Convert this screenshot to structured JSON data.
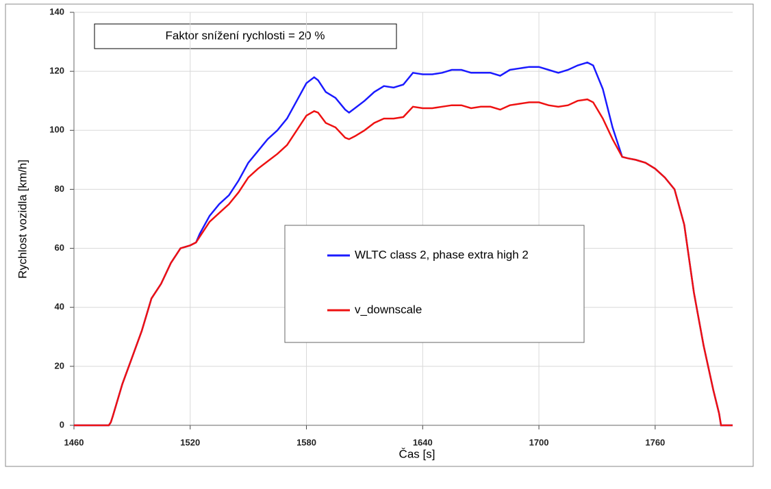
{
  "chart_data": {
    "type": "line",
    "annotation": "Faktor snížení rychlosti = 20 %",
    "x_label": "Čas [s]",
    "y_label": "Rychlost vozidla [km/h]",
    "x": [
      1460,
      1478,
      1479,
      1480,
      1485,
      1490,
      1495,
      1500,
      1505,
      1510,
      1515,
      1520,
      1523,
      1525,
      1530,
      1535,
      1540,
      1545,
      1550,
      1555,
      1560,
      1565,
      1570,
      1575,
      1580,
      1584,
      1586,
      1590,
      1595,
      1600,
      1602,
      1605,
      1610,
      1615,
      1620,
      1625,
      1630,
      1635,
      1640,
      1645,
      1650,
      1655,
      1660,
      1665,
      1670,
      1675,
      1680,
      1685,
      1690,
      1695,
      1700,
      1705,
      1710,
      1715,
      1720,
      1725,
      1728,
      1733,
      1738,
      1743,
      1746,
      1750,
      1755,
      1760,
      1765,
      1770,
      1775,
      1780,
      1785,
      1790,
      1793,
      1794,
      1800
    ],
    "series": [
      {
        "name": "WLTC class 2, phase extra high 2",
        "color": "#1a1aff",
        "values": [
          0,
          0,
          1,
          3,
          14,
          23,
          32,
          43,
          48,
          55,
          60,
          61,
          62,
          65,
          71,
          75,
          78,
          83,
          89,
          93,
          97,
          100,
          104,
          110,
          116,
          118,
          117,
          113,
          111,
          107,
          106,
          107.5,
          110,
          113,
          115,
          114.5,
          115.5,
          119.5,
          119,
          119,
          119.5,
          120.5,
          120.5,
          119.5,
          119.5,
          119.5,
          118.5,
          120.5,
          121,
          121.5,
          121.5,
          120.5,
          119.5,
          120.5,
          122,
          123,
          122,
          114,
          101,
          91,
          90.5,
          90,
          89,
          87,
          84,
          80,
          68,
          45,
          27,
          12,
          4,
          0,
          0
        ]
      },
      {
        "name": "v_downscale",
        "color": "#ee1111",
        "values": [
          0,
          0,
          1,
          3,
          14,
          23,
          32,
          43,
          48,
          55,
          60,
          61,
          62,
          64,
          69,
          72,
          75,
          79,
          84,
          87,
          89.5,
          92,
          95,
          100,
          105,
          106.5,
          106,
          102.5,
          101,
          97.5,
          97,
          98,
          100,
          102.5,
          104,
          104,
          104.5,
          108,
          107.5,
          107.5,
          108,
          108.5,
          108.5,
          107.5,
          108,
          108,
          107,
          108.5,
          109,
          109.5,
          109.5,
          108.5,
          108,
          108.5,
          110,
          110.5,
          109.5,
          104,
          97,
          91,
          90.5,
          90,
          89,
          87,
          84,
          80,
          68,
          45,
          27,
          12,
          4,
          0,
          0
        ]
      }
    ],
    "xlim": [
      1460,
      1800
    ],
    "xticks": [
      1460,
      1520,
      1580,
      1640,
      1700,
      1760
    ],
    "ylim": [
      0,
      140
    ],
    "yticks": [
      0,
      20,
      40,
      60,
      80,
      100,
      120,
      140
    ],
    "grid": true,
    "legend": "center"
  }
}
